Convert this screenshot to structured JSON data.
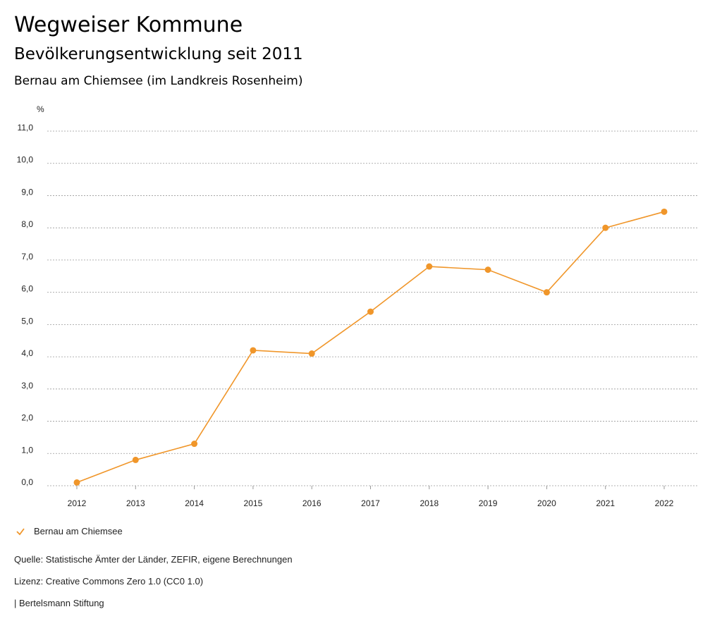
{
  "header": {
    "title": "Wegweiser Kommune",
    "subtitle": "Bevölkerungsentwicklung seit 2011",
    "location": "Bernau am Chiemsee (im Landkreis Rosenheim)"
  },
  "chart_data": {
    "type": "line",
    "title": "Bevölkerungsentwicklung seit 2011",
    "ylabel": "%",
    "xlabel": "",
    "ylim": [
      0,
      11
    ],
    "yticks": [
      "0,0",
      "1,0",
      "2,0",
      "3,0",
      "4,0",
      "5,0",
      "6,0",
      "7,0",
      "8,0",
      "9,0",
      "10,0",
      "11,0"
    ],
    "categories": [
      "2012",
      "2013",
      "2014",
      "2015",
      "2016",
      "2017",
      "2018",
      "2019",
      "2020",
      "2021",
      "2022"
    ],
    "grid": true,
    "legend_position": "bottom-left",
    "series": [
      {
        "name": "Bernau am Chiemsee",
        "color": "#f0962a",
        "values": [
          0.1,
          0.8,
          1.3,
          4.2,
          4.1,
          5.4,
          6.8,
          6.7,
          6.0,
          8.0,
          8.5
        ]
      }
    ]
  },
  "footer": {
    "source": "Quelle: Statistische Ämter der Länder, ZEFIR, eigene Berechnungen",
    "license": "Lizenz: Creative Commons Zero 1.0 (CC0 1.0)",
    "publisher": "| Bertelsmann Stiftung"
  }
}
